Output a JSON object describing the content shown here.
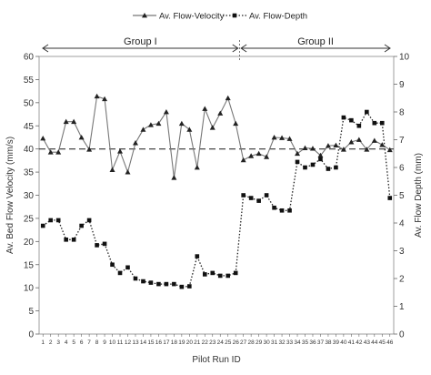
{
  "chart_data": {
    "type": "line",
    "title": "",
    "xlabel": "Pilot Run ID",
    "ylabel_left": "Av. Bed Flow Velocity (mm/s)",
    "ylabel_right": "Av. Flow Depth (mm)",
    "ylim_left": [
      0,
      60
    ],
    "ylim_right": [
      0,
      10
    ],
    "yticks_left": [
      "0",
      "5",
      "10",
      "15",
      "20",
      "25",
      "30",
      "35",
      "40",
      "45",
      "50",
      "55",
      "60"
    ],
    "yticks_right": [
      "0",
      "1",
      "2",
      "3",
      "4",
      "5",
      "6",
      "7",
      "8",
      "9",
      "10"
    ],
    "categories": [
      "1",
      "2",
      "3",
      "4",
      "5",
      "6",
      "7",
      "8",
      "9",
      "10",
      "11",
      "12",
      "13",
      "14",
      "15",
      "16",
      "17",
      "18",
      "19",
      "20",
      "21",
      "22",
      "23",
      "24",
      "25",
      "26",
      "27",
      "28",
      "29",
      "30",
      "31",
      "32",
      "33",
      "34",
      "35",
      "36",
      "37",
      "38",
      "39",
      "40",
      "41",
      "42",
      "43",
      "44",
      "45",
      "46"
    ],
    "legend_position": "top",
    "grid": false,
    "reference_line": {
      "axis": "left",
      "value": 40,
      "style": "dashed"
    },
    "groups": [
      {
        "label": "Group I",
        "from": "1",
        "to": "26"
      },
      {
        "label": "Group II",
        "from": "27",
        "to": "46"
      }
    ],
    "series": [
      {
        "name": "Av. Flow-Velocity",
        "axis": "left",
        "marker": "triangle",
        "line_style": "solid",
        "values": [
          42.3,
          39.3,
          39.3,
          45.9,
          45.9,
          42.5,
          39.9,
          51.4,
          50.8,
          35.5,
          39.5,
          35.0,
          41.3,
          44.2,
          45.2,
          45.5,
          48.0,
          33.8,
          45.5,
          44.2,
          36.0,
          48.7,
          44.6,
          47.7,
          51.0,
          45.5,
          37.6,
          38.5,
          39.0,
          38.3,
          42.5,
          42.4,
          42.2,
          39.0,
          40.2,
          40.1,
          38.6,
          40.7,
          40.8,
          39.9,
          41.5,
          42.0,
          39.9,
          41.8,
          40.9,
          39.8
        ]
      },
      {
        "name": "Av. Flow-Depth",
        "axis": "right",
        "marker": "square",
        "line_style": "dotted",
        "values": [
          3.9,
          4.1,
          4.1,
          3.4,
          3.4,
          3.9,
          4.1,
          3.2,
          3.25,
          2.5,
          2.2,
          2.4,
          2.0,
          1.9,
          1.85,
          1.8,
          1.8,
          1.8,
          1.7,
          1.72,
          2.8,
          2.15,
          2.2,
          2.1,
          2.1,
          2.2,
          5.0,
          4.9,
          4.8,
          5.0,
          4.55,
          4.45,
          4.45,
          6.2,
          6.0,
          6.1,
          6.3,
          5.95,
          6.0,
          7.8,
          7.7,
          7.5,
          8.0,
          7.6,
          7.6,
          4.9
        ]
      }
    ]
  }
}
